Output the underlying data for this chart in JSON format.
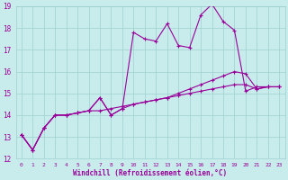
{
  "xlabel": "Windchill (Refroidissement éolien,°C)",
  "bg_color": "#c8ecec",
  "grid_color": "#9ecece",
  "line_color": "#990099",
  "xlim": [
    -0.5,
    23.5
  ],
  "ylim": [
    12,
    19
  ],
  "xticks": [
    0,
    1,
    2,
    3,
    4,
    5,
    6,
    7,
    8,
    9,
    10,
    11,
    12,
    13,
    14,
    15,
    16,
    17,
    18,
    19,
    20,
    21,
    22,
    23
  ],
  "yticks": [
    12,
    13,
    14,
    15,
    16,
    17,
    18,
    19
  ],
  "series1": [
    13.1,
    12.4,
    13.4,
    14.0,
    14.0,
    14.1,
    14.2,
    14.8,
    14.0,
    14.3,
    17.8,
    17.5,
    17.4,
    18.2,
    17.2,
    17.1,
    18.6,
    19.1,
    18.3,
    17.9,
    15.1,
    15.3,
    15.3,
    15.3
  ],
  "series2": [
    13.1,
    12.4,
    13.4,
    14.0,
    14.0,
    14.1,
    14.2,
    14.2,
    14.3,
    14.4,
    14.5,
    14.6,
    14.7,
    14.8,
    14.9,
    15.0,
    15.1,
    15.2,
    15.3,
    15.4,
    15.4,
    15.2,
    15.3,
    15.3
  ],
  "series3": [
    13.1,
    12.4,
    13.4,
    14.0,
    14.0,
    14.1,
    14.2,
    14.8,
    14.0,
    14.3,
    14.5,
    14.6,
    14.7,
    14.8,
    15.0,
    15.2,
    15.4,
    15.6,
    15.8,
    16.0,
    15.9,
    15.2,
    15.3,
    15.3
  ]
}
